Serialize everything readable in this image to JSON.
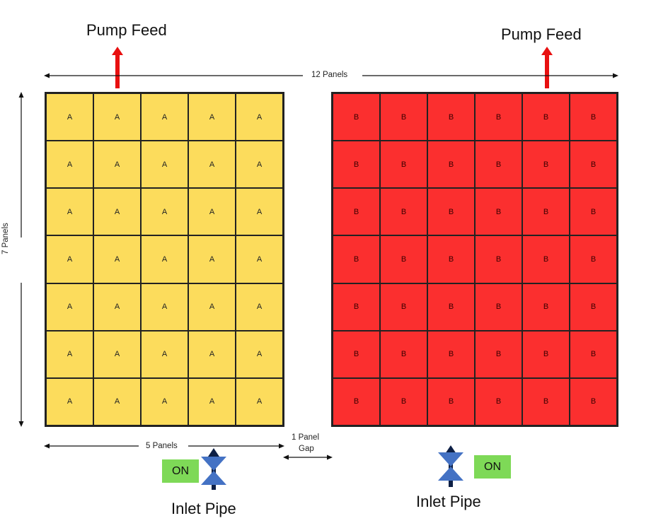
{
  "labels": {
    "pump_feed_left": "Pump Feed",
    "pump_feed_right": "Pump Feed",
    "width_total": "12 Panels",
    "height_total": "7 Panels",
    "width_left": "5 Panels",
    "gap_line1": "1 Panel",
    "gap_line2": "Gap",
    "inlet_left": "Inlet Pipe",
    "inlet_right": "Inlet Pipe",
    "on_left": "ON",
    "on_right": "ON"
  },
  "array_a": {
    "label": "A",
    "rows": 7,
    "cols": 5,
    "color": "#fcdc5c"
  },
  "array_b": {
    "label": "B",
    "rows": 7,
    "cols": 6,
    "color": "#fb2f2f"
  },
  "colors": {
    "pump_arrow": "#e81010",
    "inlet_arrow": "#0d1f45",
    "valve": "#4472c4",
    "on_badge": "#7ed957"
  }
}
